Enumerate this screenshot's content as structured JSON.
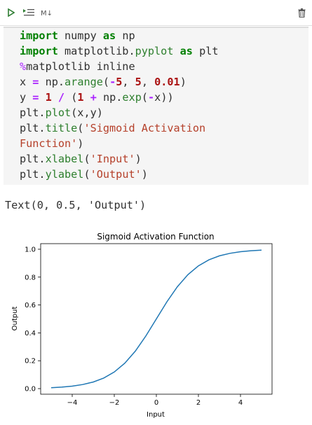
{
  "toolbar": {
    "run_icon": "play-icon",
    "run_all_icon": "run-list-icon",
    "markdown_label": "M↓",
    "delete_icon": "trash-icon"
  },
  "code_lines": [
    "import numpy as np",
    "import matplotlib.pyplot as plt",
    "%matplotlib inline",
    "x = np.arange(-5, 5, 0.01)",
    "y = 1 / (1 + np.exp(-x))",
    "plt.plot(x,y)",
    "plt.title('Sigmoid Activation",
    "Function')",
    "plt.xlabel('Input')",
    "plt.ylabel('Output')"
  ],
  "output": {
    "text": "Text(0, 0.5, 'Output')"
  },
  "chart_data": {
    "type": "line",
    "title": "Sigmoid Activation Function",
    "xlabel": "Input",
    "ylabel": "Output",
    "xlim": [
      -5.5,
      5.5
    ],
    "ylim": [
      -0.04,
      1.04
    ],
    "x_ticks": [
      -4,
      -2,
      0,
      2,
      4
    ],
    "x_tick_labels": [
      "−4",
      "−2",
      "0",
      "2",
      "4"
    ],
    "y_ticks": [
      0.0,
      0.2,
      0.4,
      0.6,
      0.8,
      1.0
    ],
    "y_tick_labels": [
      "0.0",
      "0.2",
      "0.4",
      "0.6",
      "0.8",
      "1.0"
    ],
    "grid": false,
    "line_color": "#1f77b4",
    "series": [
      {
        "x": [
          -5,
          -4.5,
          -4,
          -3.5,
          -3,
          -2.5,
          -2,
          -1.5,
          -1,
          -0.5,
          0,
          0.5,
          1,
          1.5,
          2,
          2.5,
          3,
          3.5,
          4,
          4.5,
          5
        ],
        "values": [
          0.0067,
          0.011,
          0.018,
          0.0293,
          0.0474,
          0.0759,
          0.1192,
          0.1824,
          0.2689,
          0.3775,
          0.5,
          0.6225,
          0.7311,
          0.8176,
          0.8808,
          0.9241,
          0.9526,
          0.9707,
          0.982,
          0.989,
          0.9933
        ]
      }
    ]
  }
}
